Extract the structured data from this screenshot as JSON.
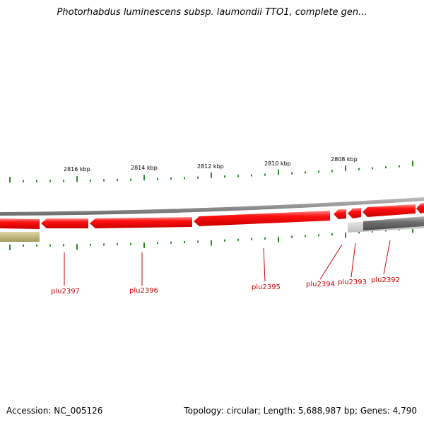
{
  "title": "Photorhabdus luminescens subsp. laumondii TTO1, complete gen...",
  "footer": {
    "accession": "Accession: NC_005126",
    "summary": "Topology: circular; Length: 5,688,987 bp; Genes: 4,790"
  },
  "colors": {
    "gene_forward": "#ff0000",
    "gene_reverse_gray": "#7a7a7a",
    "olive_feature": "#b8b07a",
    "backbone": "#8a8a8a",
    "tick": "#2a8a2a",
    "label": "#cc0000"
  },
  "scale_labels": [
    "2816 kbp",
    "2814 kbp",
    "2812 kbp",
    "2810 kbp",
    "2808 kbp"
  ],
  "genes": [
    {
      "id": "plu2397",
      "strand": "reverse",
      "color": "red"
    },
    {
      "id": "plu2396",
      "strand": "reverse",
      "color": "red"
    },
    {
      "id": "plu2395",
      "strand": "reverse",
      "color": "red"
    },
    {
      "id": "plu2394",
      "strand": "reverse",
      "color": "red"
    },
    {
      "id": "plu2393",
      "strand": "reverse",
      "color": "red"
    },
    {
      "id": "plu2392",
      "strand": "forward",
      "color": "gray"
    }
  ]
}
